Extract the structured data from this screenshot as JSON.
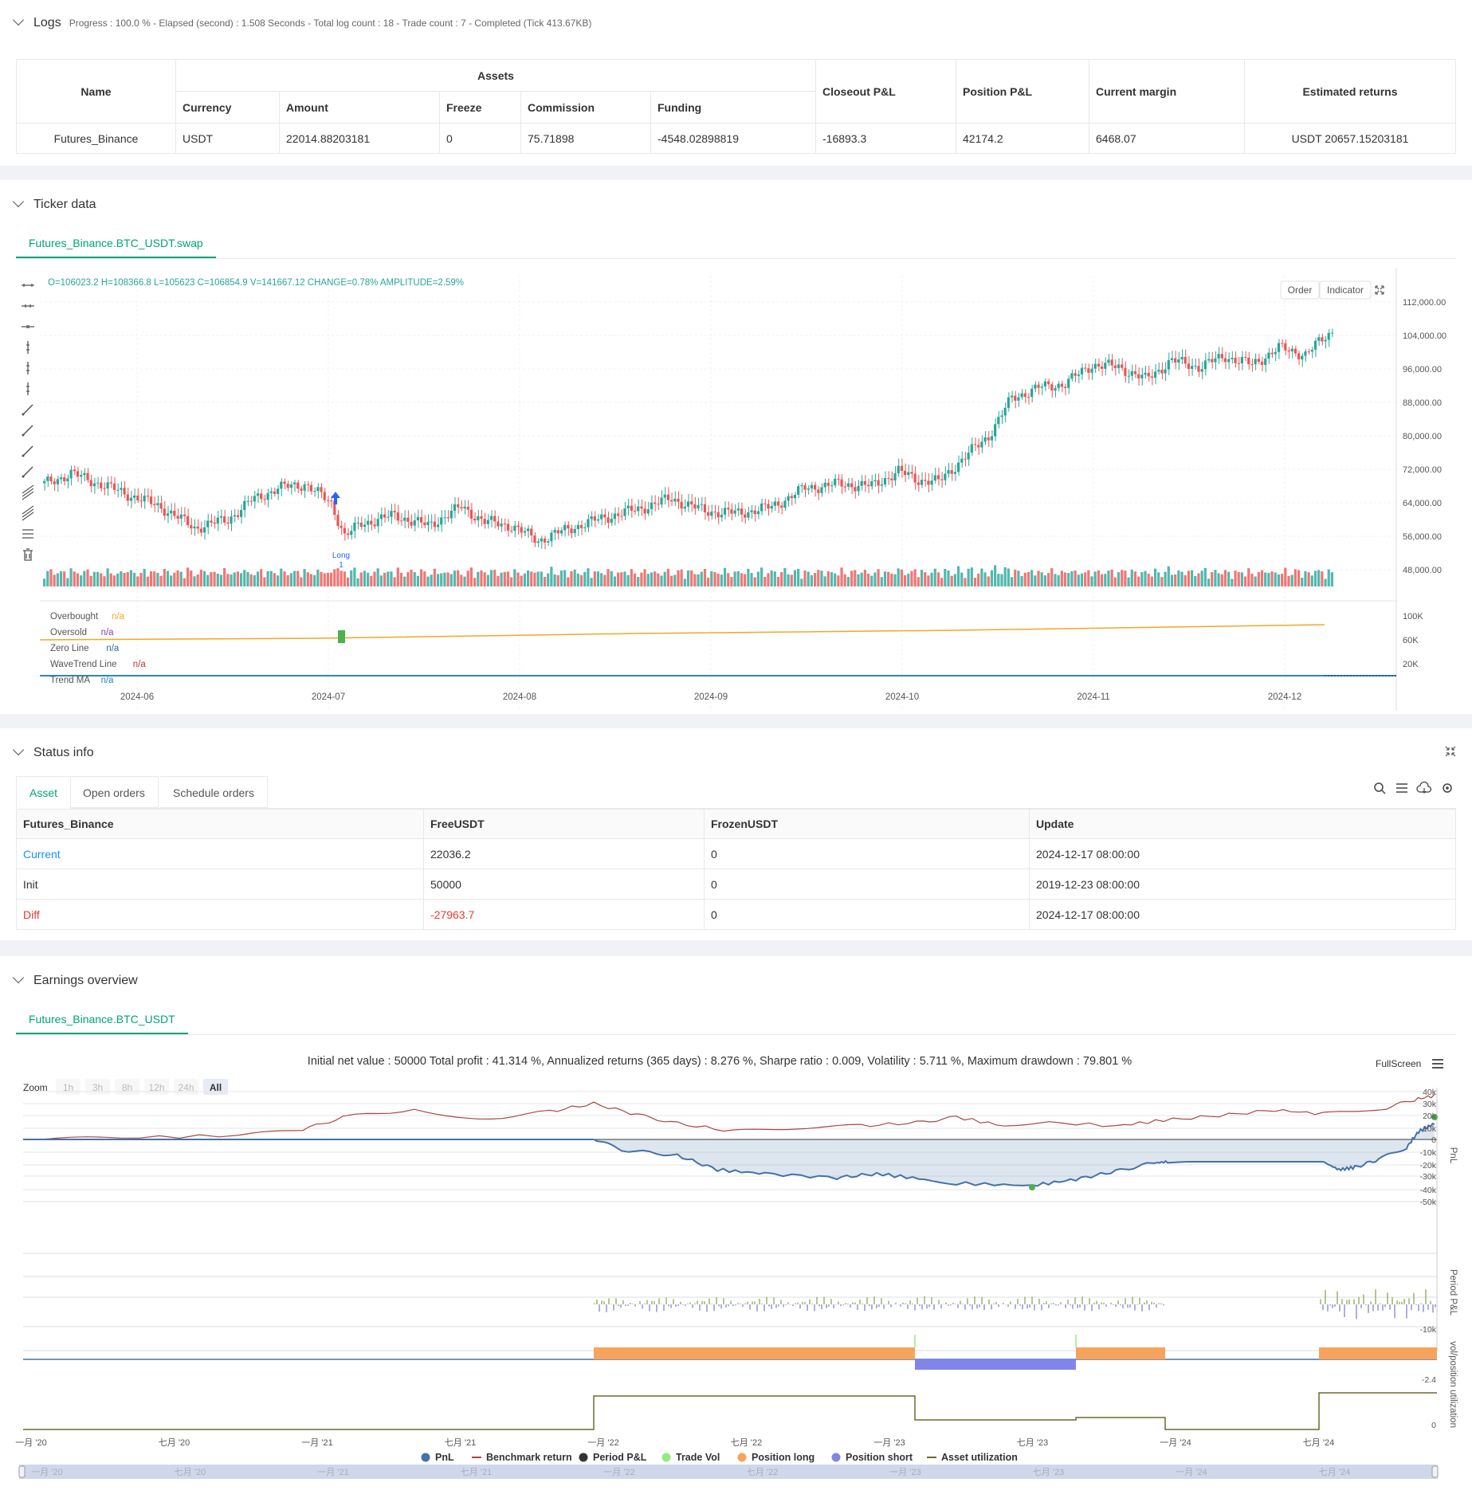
{
  "logs": {
    "title": "Logs",
    "summary": "Progress : 100.0 % - Elapsed (second) : 1.508  Seconds - Total log count : 18 - Trade count : 7 - Completed (Tick 413.67KB)",
    "headers": {
      "name": "Name",
      "assets": "Assets",
      "currency": "Currency",
      "amount": "Amount",
      "freeze": "Freeze",
      "commission": "Commission",
      "funding": "Funding",
      "closeout": "Closeout P&L",
      "position": "Position P&L",
      "margin": "Current margin",
      "returns": "Estimated returns"
    },
    "row": {
      "name": "Futures_Binance",
      "currency": "USDT",
      "amount": "22014.88203181",
      "freeze": "0",
      "commission": "75.71898",
      "funding": "-4548.02898819",
      "closeout": "-16893.3",
      "position": "42174.2",
      "margin": "6468.07",
      "returns": "USDT 20657.15203181"
    }
  },
  "ticker": {
    "title": "Ticker data",
    "tab": "Futures_Binance.BTC_USDT.swap",
    "ohlc": "O=106023.2 H=108366.8 L=105623 C=106854.9 V=141667.12 CHANGE=0.78% AMPLITUDE=2.59%",
    "buttons": {
      "order": "Order",
      "indicator": "Indicator"
    },
    "price_ticks": [
      "112,000.00",
      "104,000.00",
      "96,000.00",
      "88,000.00",
      "80,000.00",
      "72,000.00",
      "64,000.00",
      "56,000.00",
      "48,000.00"
    ],
    "vol_ticks": [
      "100K",
      "60K",
      "20K"
    ],
    "x_ticks": [
      "2024-06",
      "2024-07",
      "2024-08",
      "2024-09",
      "2024-10",
      "2024-11",
      "2024-12"
    ],
    "legend": [
      {
        "name": "Overbought",
        "value": "n/a",
        "color": "#f5a623"
      },
      {
        "name": "Oversold",
        "value": "n/a",
        "color": "#8e44ad"
      },
      {
        "name": "Zero Line",
        "value": "n/a",
        "color": "#2471a3"
      },
      {
        "name": "WaveTrend Line",
        "value": "n/a",
        "color": "#c0392b"
      },
      {
        "name": "Trend MA",
        "value": "n/a",
        "color": "#2e86c1"
      }
    ],
    "marker": {
      "label": "Long",
      "count": "1"
    },
    "colors": {
      "up": "#26a69a",
      "down": "#ef5350"
    }
  },
  "status": {
    "title": "Status info",
    "tabs": [
      "Asset",
      "Open orders",
      "Schedule orders"
    ],
    "headers": [
      "Futures_Binance",
      "FreeUSDT",
      "FrozenUSDT",
      "Update"
    ],
    "rows": [
      {
        "label": "Current",
        "free": "22036.2",
        "frozen": "0",
        "update": "2024-12-17 08:00:00"
      },
      {
        "label": "Init",
        "free": "50000",
        "frozen": "0",
        "update": "2019-12-23 08:00:00"
      },
      {
        "label": "Diff",
        "free": "-27963.7",
        "frozen": "0",
        "update": "2024-12-17 08:00:00"
      }
    ]
  },
  "earnings": {
    "title": "Earnings overview",
    "tab": "Futures_Binance.BTC_USDT",
    "summary": "Initial net value : 50000  Total profit : 41.314 %, Annualized returns (365 days) : 8.276 %, Sharpe ratio : 0.009, Volatility : 5.711 %, Maximum drawdown : 79.801 %",
    "fullscreen": "FullScreen",
    "zoom_label": "Zoom",
    "zoom_options": [
      "1h",
      "3h",
      "8h",
      "12h",
      "24h",
      "All"
    ],
    "pnl_ticks": [
      "40k",
      "30k",
      "20k",
      "10k",
      "0",
      "-10k",
      "-20k",
      "-30k",
      "-40k",
      "-50k"
    ],
    "period_tick": "-10k",
    "pos_tick": "-2.4",
    "util_tick": "0",
    "axis_labels": {
      "pnl": "PnL",
      "period": "Period P&L",
      "pos": "vol/position",
      "util": "utilization"
    },
    "x_ticks": [
      "一月 '20",
      "七月 '20",
      "一月 '21",
      "七月 '21",
      "一月 '22",
      "七月 '22",
      "一月 '23",
      "七月 '23",
      "一月 '24",
      "七月 '24"
    ],
    "legend": [
      {
        "name": "PnL",
        "color": "#4572a7"
      },
      {
        "name": "Benchmark return",
        "color": "#aa4643"
      },
      {
        "name": "Period P&L",
        "color": "#333333"
      },
      {
        "name": "Trade Vol",
        "color": "#90ed7d"
      },
      {
        "name": "Position long",
        "color": "#f7a35c"
      },
      {
        "name": "Position short",
        "color": "#8085e9"
      },
      {
        "name": "Asset utilization",
        "color": "#6b6b2a"
      }
    ]
  }
}
